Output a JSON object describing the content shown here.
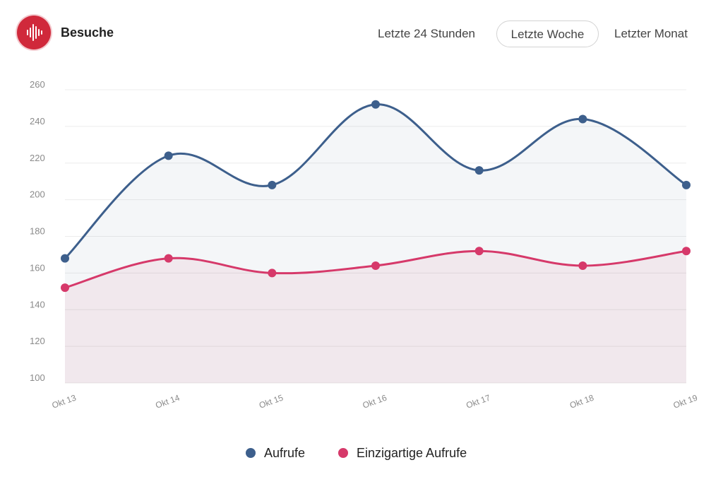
{
  "header": {
    "title": "Besuche",
    "icon": "sound-wave-icon",
    "ranges": [
      {
        "label": "Letzte 24 Stunden",
        "active": false
      },
      {
        "label": "Letzte Woche",
        "active": true
      },
      {
        "label": "Letzter Monat",
        "active": false
      }
    ]
  },
  "colors": {
    "accent": "#d0293b",
    "series1": "#3d5f8c",
    "series2": "#d6396a"
  },
  "chart_data": {
    "type": "area",
    "categories": [
      "Okt 13",
      "Okt 14",
      "Okt 15",
      "Okt 16",
      "Okt 17",
      "Okt 18",
      "Okt 19"
    ],
    "series": [
      {
        "name": "Aufrufe",
        "values": [
          168,
          224,
          208,
          252,
          216,
          244,
          208
        ]
      },
      {
        "name": "Einzigartige Aufrufe",
        "values": [
          152,
          168,
          160,
          164,
          172,
          164,
          172
        ]
      }
    ],
    "yticks": [
      100,
      120,
      140,
      160,
      180,
      200,
      220,
      240,
      260
    ],
    "ylim": [
      100,
      260
    ],
    "grid": true,
    "legend": "bottom-center"
  }
}
